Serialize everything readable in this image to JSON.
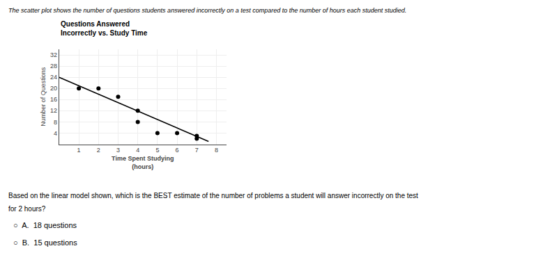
{
  "chart_data": {
    "type": "scatter",
    "title": [
      "Questions Answered",
      "Incorrectly vs. Study Time"
    ],
    "xlabel": [
      "Time Spent Studying",
      "(hours)"
    ],
    "ylabel": "Number of Questions",
    "series": [
      {
        "type": "scatter",
        "color": "#000000",
        "x": [
          1,
          2,
          3,
          4,
          4,
          5,
          6,
          7,
          7
        ],
        "values": [
          20,
          20,
          17,
          12,
          8,
          4,
          4,
          2,
          3
        ]
      },
      {
        "type": "line",
        "color": "#000000",
        "x": [
          0,
          7.6
        ],
        "values": [
          24,
          1
        ]
      }
    ],
    "xlim": [
      0,
      8.5
    ],
    "ylim": [
      0,
      34
    ],
    "xticks": [
      1,
      2,
      3,
      4,
      5,
      6,
      7,
      8
    ],
    "yticks": [
      4,
      8,
      12,
      16,
      20,
      24,
      28,
      32
    ],
    "grid": true,
    "annotations": [
      "The scatter plot shows the number of questions students answered incorrectly on a test compared to the number of hours each student studied.",
      "Based on the linear model shown, which is the BEST estimate of the number of problems a student will answer incorrectly on the test",
      "for 2 hours?",
      "○  A.  18 questions",
      "○  B.  15 questions"
    ]
  }
}
